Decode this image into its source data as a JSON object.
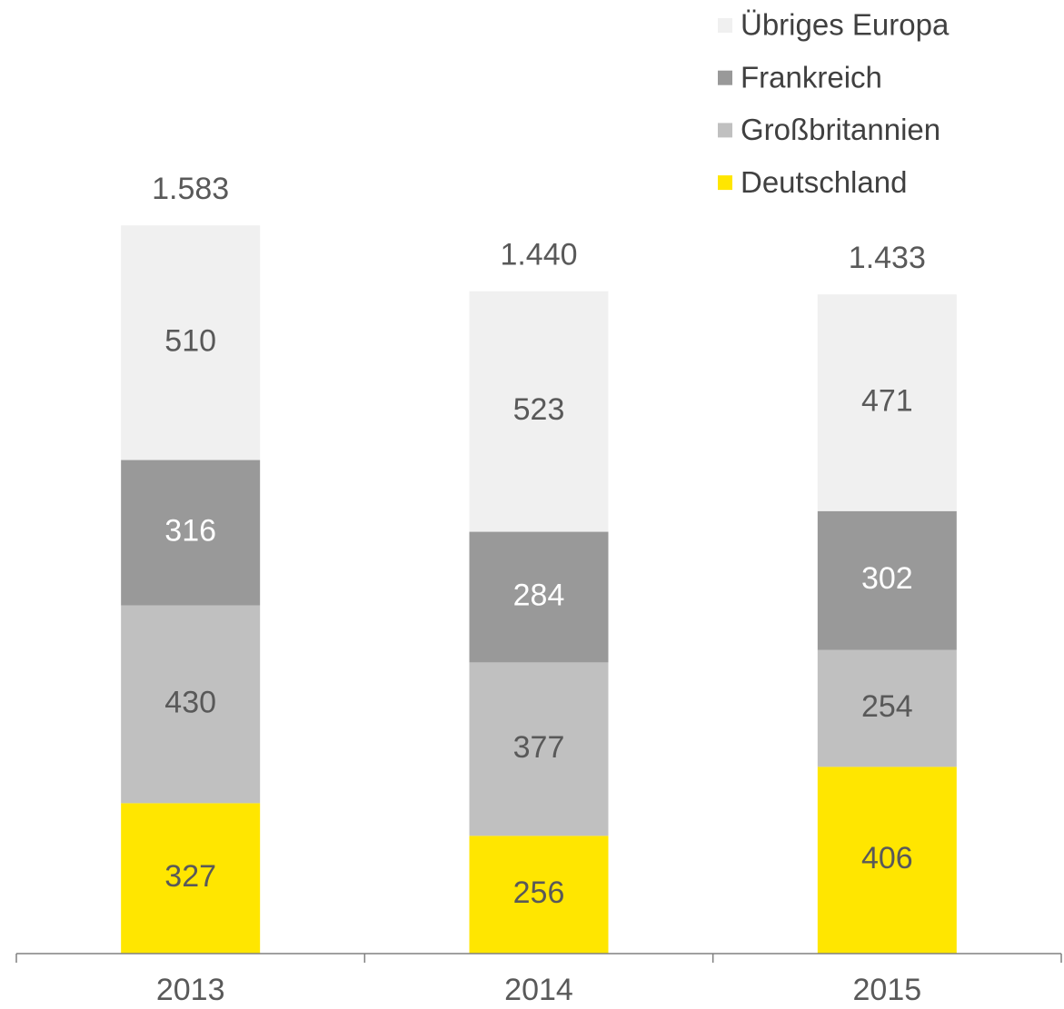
{
  "chart_data": {
    "type": "stacked_bar",
    "categories": [
      "2013",
      "2014",
      "2015"
    ],
    "series": [
      {
        "name": "Deutschland",
        "color": "#ffe600",
        "values": [
          327,
          256,
          406
        ]
      },
      {
        "name": "Großbritannien",
        "color": "#c0c0c0",
        "values": [
          430,
          377,
          254
        ]
      },
      {
        "name": "Frankreich",
        "color": "#999999",
        "values": [
          316,
          284,
          302
        ]
      },
      {
        "name": "Übriges Europa",
        "color": "#f0f0f0",
        "values": [
          510,
          523,
          471
        ]
      }
    ],
    "totals": {
      "values": [
        1583,
        1440,
        1433
      ],
      "value_labels": [
        "1.583",
        "1.440",
        "1.433"
      ]
    },
    "ylim": [
      0,
      2000
    ],
    "legend": "top-right"
  }
}
